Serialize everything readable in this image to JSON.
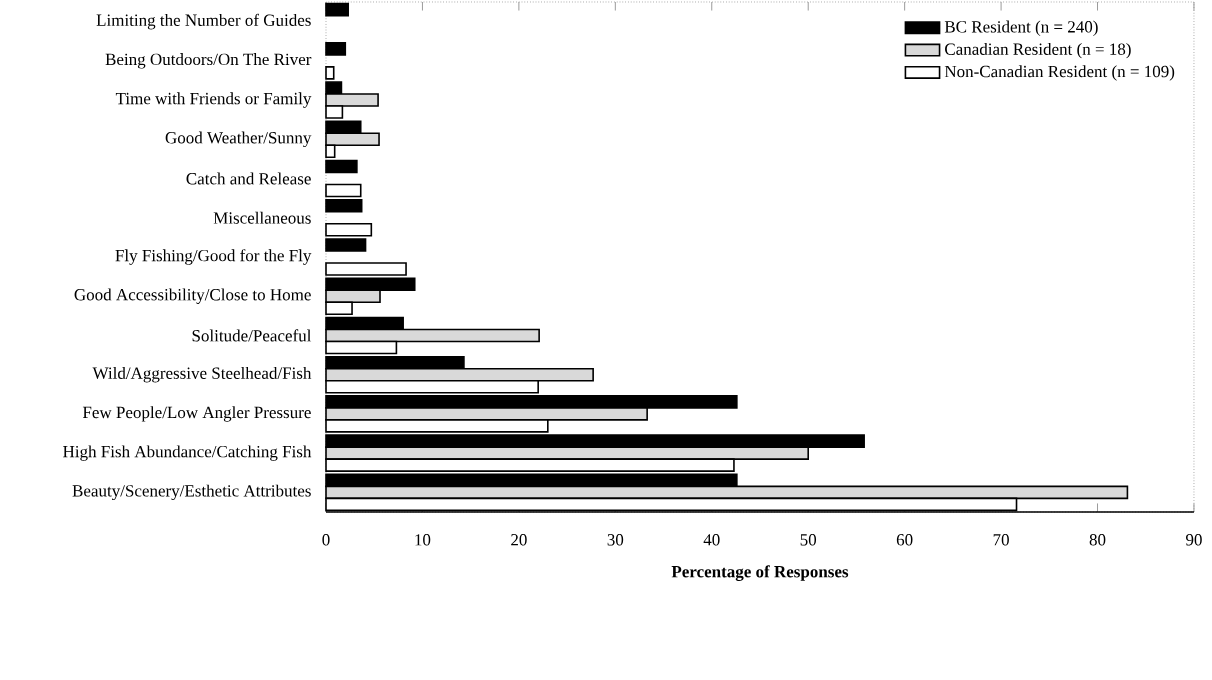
{
  "chart_data": {
    "type": "bar",
    "orientation": "horizontal",
    "xlabel": "Percentage of Responses",
    "categories": [
      "Limiting the Number of Guides",
      "Being Outdoors/On The River",
      "Time with Friends or Family",
      "Good Weather/Sunny",
      "Catch and Release",
      "Miscellaneous",
      "Fly Fishing/Good for the Fly",
      "Good Accessibility/Close to Home",
      "Solitude/Peaceful",
      "Wild/Aggressive Steelhead/Fish",
      "Few People/Low Angler Pressure",
      "High Fish Abundance/Catching Fish",
      "Beauty/Scenery/Esthetic Attributes"
    ],
    "series": [
      {
        "name": "BC Resident (n = 240)",
        "color": "#000000",
        "values": [
          2.3,
          2.0,
          1.6,
          3.6,
          3.2,
          3.7,
          4.1,
          9.2,
          8.0,
          14.3,
          42.6,
          55.8,
          42.6
        ]
      },
      {
        "name": "Canadian Resident (n = 18)",
        "color": "#d9d9d9",
        "values": [
          null,
          null,
          5.4,
          5.5,
          null,
          null,
          null,
          5.6,
          22.1,
          27.7,
          33.3,
          50.0,
          83.1
        ]
      },
      {
        "name": "Non-Canadian Resident (n = 109)",
        "color": "#ffffff",
        "values": [
          null,
          0.8,
          1.7,
          0.9,
          3.6,
          4.7,
          8.3,
          2.7,
          7.3,
          22.0,
          23.0,
          42.3,
          71.6
        ]
      }
    ],
    "xlim": [
      0,
      90
    ],
    "xticks": [
      0,
      10,
      20,
      30,
      40,
      50,
      60,
      70,
      80,
      90
    ],
    "grid": false,
    "legend": "top right"
  }
}
